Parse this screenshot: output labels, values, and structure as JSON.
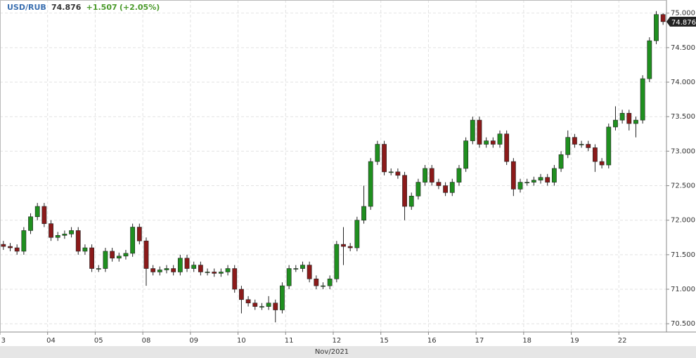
{
  "chart_data": {
    "type": "candlestick",
    "symbol": "USD/RUB",
    "change": "+1.507",
    "change_pct": "(+2.05%)",
    "x_label": "Nov/2021",
    "up_color": "#1f8f1f",
    "down_color": "#8b1a1a",
    "grid": true,
    "ylim": [
      70.38,
      75.19
    ],
    "yticks": [
      {
        "value": 70.5,
        "label": "70.500"
      },
      {
        "value": 71.0,
        "label": "71.000"
      },
      {
        "value": 71.5,
        "label": "71.500"
      },
      {
        "value": 72.0,
        "label": "72.000"
      },
      {
        "value": 72.5,
        "label": "72.500"
      },
      {
        "value": 73.0,
        "label": "73.000"
      },
      {
        "value": 73.5,
        "label": "73.500"
      },
      {
        "value": 74.0,
        "label": "74.000"
      },
      {
        "value": 74.5,
        "label": "74.500"
      },
      {
        "value": 75.0,
        "label": "75.000"
      }
    ],
    "categories": [
      "3",
      null,
      null,
      null,
      null,
      null,
      null,
      "04",
      null,
      null,
      null,
      null,
      null,
      null,
      "05",
      null,
      null,
      null,
      null,
      null,
      null,
      "08",
      null,
      null,
      null,
      null,
      null,
      null,
      "09",
      null,
      null,
      null,
      null,
      null,
      null,
      "10",
      null,
      null,
      null,
      null,
      null,
      null,
      "11",
      null,
      null,
      null,
      null,
      null,
      null,
      "12",
      null,
      null,
      null,
      null,
      null,
      null,
      "15",
      null,
      null,
      null,
      null,
      null,
      null,
      "16",
      null,
      null,
      null,
      null,
      null,
      null,
      "17",
      null,
      null,
      null,
      null,
      null,
      null,
      "18",
      null,
      null,
      null,
      null,
      null,
      null,
      "19",
      null,
      null,
      null,
      null,
      null,
      null,
      "22",
      null,
      null,
      null,
      null,
      null,
      null
    ],
    "open": [
      71.65,
      71.62,
      71.6,
      71.55,
      71.85,
      72.05,
      72.2,
      71.95,
      71.75,
      71.78,
      71.8,
      71.85,
      71.55,
      71.6,
      71.3,
      71.3,
      71.55,
      71.45,
      71.48,
      71.52,
      71.9,
      71.7,
      71.3,
      71.25,
      71.28,
      71.3,
      71.25,
      71.45,
      71.3,
      71.35,
      71.25,
      71.25,
      71.23,
      71.25,
      71.3,
      71.0,
      70.85,
      70.8,
      70.75,
      70.75,
      70.8,
      70.7,
      71.05,
      71.3,
      71.3,
      71.35,
      71.15,
      71.05,
      71.05,
      71.15,
      71.65,
      71.62,
      71.6,
      72.0,
      72.2,
      72.85,
      73.1,
      72.7,
      72.7,
      72.65,
      72.2,
      72.35,
      72.55,
      72.75,
      72.55,
      72.5,
      72.4,
      72.55,
      72.75,
      73.15,
      73.45,
      73.1,
      73.15,
      73.1,
      73.25,
      72.85,
      72.45,
      72.55,
      72.55,
      72.58,
      72.62,
      72.55,
      72.75,
      72.95,
      73.2,
      73.1,
      73.1,
      73.05,
      72.85,
      72.8,
      73.35,
      73.45,
      73.55,
      73.4,
      73.45,
      74.05,
      74.6,
      74.98
    ],
    "high": [
      71.7,
      71.67,
      71.65,
      71.9,
      72.1,
      72.25,
      72.25,
      72.0,
      71.83,
      71.85,
      71.9,
      71.9,
      71.65,
      71.65,
      71.35,
      71.6,
      71.6,
      71.53,
      71.57,
      71.95,
      71.95,
      71.75,
      71.35,
      71.33,
      71.35,
      71.35,
      71.5,
      71.5,
      71.4,
      71.4,
      71.3,
      71.3,
      71.3,
      71.35,
      71.35,
      71.05,
      70.9,
      70.85,
      70.8,
      70.9,
      70.85,
      71.1,
      71.35,
      71.35,
      71.4,
      71.4,
      71.2,
      71.1,
      71.2,
      71.7,
      71.9,
      71.67,
      72.05,
      72.5,
      72.9,
      73.15,
      73.15,
      72.75,
      72.75,
      72.7,
      72.4,
      72.6,
      72.8,
      72.8,
      72.6,
      72.55,
      72.6,
      72.8,
      73.2,
      73.5,
      73.5,
      73.2,
      73.2,
      73.3,
      73.3,
      72.9,
      72.6,
      72.6,
      72.63,
      72.67,
      72.67,
      72.8,
      73.0,
      73.3,
      73.25,
      73.15,
      73.15,
      73.1,
      72.9,
      73.4,
      73.65,
      73.6,
      73.6,
      73.5,
      74.1,
      74.65,
      75.03,
      75.0
    ],
    "low": [
      71.57,
      71.55,
      71.5,
      71.5,
      71.8,
      72.0,
      71.9,
      71.7,
      71.7,
      71.73,
      71.75,
      71.5,
      71.5,
      71.25,
      71.25,
      71.25,
      71.4,
      71.4,
      71.43,
      71.47,
      71.65,
      71.05,
      71.2,
      71.2,
      71.23,
      71.2,
      71.2,
      71.25,
      71.25,
      71.2,
      71.2,
      71.18,
      71.18,
      71.2,
      70.95,
      70.65,
      70.75,
      70.7,
      70.7,
      70.7,
      70.52,
      70.65,
      71.0,
      71.25,
      71.25,
      71.1,
      71.0,
      71.0,
      71.0,
      71.1,
      71.35,
      71.55,
      71.55,
      71.95,
      72.15,
      72.8,
      72.65,
      72.65,
      72.6,
      72.0,
      72.15,
      72.3,
      72.5,
      72.5,
      72.45,
      72.35,
      72.35,
      72.5,
      72.7,
      73.1,
      73.05,
      73.05,
      73.05,
      73.05,
      72.8,
      72.35,
      72.4,
      72.5,
      72.5,
      72.53,
      72.5,
      72.5,
      72.7,
      72.9,
      73.05,
      73.05,
      73.0,
      72.7,
      72.75,
      72.75,
      73.3,
      73.4,
      73.3,
      73.2,
      73.4,
      74.0,
      74.55,
      74.83
    ],
    "close": [
      71.62,
      71.6,
      71.55,
      71.85,
      72.05,
      72.2,
      71.95,
      71.75,
      71.78,
      71.8,
      71.85,
      71.55,
      71.6,
      71.3,
      71.3,
      71.55,
      71.45,
      71.48,
      71.52,
      71.9,
      71.7,
      71.3,
      71.25,
      71.28,
      71.3,
      71.25,
      71.45,
      71.3,
      71.35,
      71.25,
      71.25,
      71.23,
      71.25,
      71.3,
      71.0,
      70.85,
      70.8,
      70.75,
      70.75,
      70.8,
      70.7,
      71.05,
      71.3,
      71.3,
      71.35,
      71.15,
      71.05,
      71.05,
      71.15,
      71.65,
      71.62,
      71.6,
      72.0,
      72.2,
      72.85,
      73.1,
      72.7,
      72.7,
      72.65,
      72.2,
      72.35,
      72.55,
      72.75,
      72.55,
      72.5,
      72.4,
      72.55,
      72.75,
      73.15,
      73.45,
      73.1,
      73.15,
      73.1,
      73.25,
      72.85,
      72.45,
      72.55,
      72.55,
      72.58,
      72.62,
      72.55,
      72.75,
      72.95,
      73.2,
      73.1,
      73.1,
      73.05,
      72.85,
      72.8,
      73.35,
      73.45,
      73.55,
      73.4,
      73.45,
      74.05,
      74.6,
      74.98,
      74.876
    ]
  }
}
